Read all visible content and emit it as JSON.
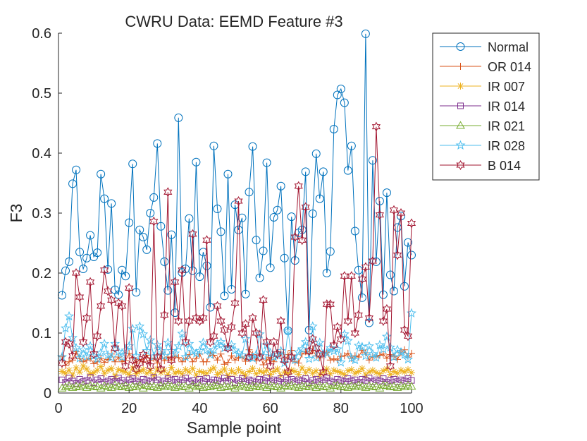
{
  "chart_data": {
    "type": "line",
    "title": "CWRU Data: EEMD Feature #3",
    "xlabel": "Sample point",
    "ylabel": "F3",
    "xlim": [
      0,
      100
    ],
    "ylim": [
      0,
      0.6
    ],
    "xticks": [
      0,
      20,
      40,
      60,
      80,
      100
    ],
    "xtick_labels": [
      "0",
      "20",
      "40",
      "60",
      "80",
      "100"
    ],
    "yticks": [
      0,
      0.1,
      0.2,
      0.3,
      0.4,
      0.5,
      0.6
    ],
    "ytick_labels": [
      "0",
      "0.1",
      "0.2",
      "0.3",
      "0.4",
      "0.5",
      "0.6"
    ],
    "grid": false,
    "legend_position": "top-right outside",
    "x": [
      1,
      2,
      3,
      4,
      5,
      6,
      7,
      8,
      9,
      10,
      11,
      12,
      13,
      14,
      15,
      16,
      17,
      18,
      19,
      20,
      21,
      22,
      23,
      24,
      25,
      26,
      27,
      28,
      29,
      30,
      31,
      32,
      33,
      34,
      35,
      36,
      37,
      38,
      39,
      40,
      41,
      42,
      43,
      44,
      45,
      46,
      47,
      48,
      49,
      50,
      51,
      52,
      53,
      54,
      55,
      56,
      57,
      58,
      59,
      60,
      61,
      62,
      63,
      64,
      65,
      66,
      67,
      68,
      69,
      70,
      71,
      72,
      73,
      74,
      75,
      76,
      77,
      78,
      79,
      80,
      81,
      82,
      83,
      84,
      85,
      86,
      87,
      88,
      89,
      90,
      91,
      92,
      93,
      94,
      95,
      96,
      97,
      98,
      99,
      100
    ],
    "series": [
      {
        "name": "Normal",
        "color": "#0072BD",
        "marker": "circle",
        "values": [
          0.163,
          0.204,
          0.219,
          0.349,
          0.372,
          0.235,
          0.207,
          0.225,
          0.263,
          0.227,
          0.234,
          0.365,
          0.324,
          0.206,
          0.316,
          0.172,
          0.164,
          0.205,
          0.195,
          0.284,
          0.382,
          0.168,
          0.272,
          0.26,
          0.239,
          0.3,
          0.326,
          0.416,
          0.278,
          0.219,
          0.171,
          0.264,
          0.134,
          0.459,
          0.201,
          0.207,
          0.291,
          0.204,
          0.385,
          0.194,
          0.235,
          0.212,
          0.143,
          0.412,
          0.307,
          0.269,
          0.162,
          0.365,
          0.173,
          0.314,
          0.272,
          0.292,
          0.165,
          0.335,
          0.411,
          0.255,
          0.192,
          0.237,
          0.384,
          0.209,
          0.293,
          0.305,
          0.345,
          0.225,
          0.104,
          0.294,
          0.221,
          0.267,
          0.272,
          0.369,
          0.105,
          0.299,
          0.399,
          0.324,
          0.369,
          0.2,
          0.236,
          0.44,
          0.497,
          0.507,
          0.484,
          0.371,
          0.412,
          0.27,
          0.205,
          0.159,
          0.599,
          0.117,
          0.388,
          0.219,
          0.32,
          0.164,
          0.334,
          0.197,
          0.17,
          0.276,
          0.295,
          0.178,
          0.251,
          0.23
        ]
      },
      {
        "name": "OR 014",
        "color": "#D95319",
        "marker": "plus",
        "values": [
          0.061,
          0.046,
          0.052,
          0.055,
          0.069,
          0.057,
          0.052,
          0.055,
          0.058,
          0.049,
          0.052,
          0.058,
          0.051,
          0.056,
          0.065,
          0.052,
          0.06,
          0.052,
          0.054,
          0.066,
          0.059,
          0.05,
          0.056,
          0.052,
          0.063,
          0.054,
          0.058,
          0.05,
          0.065,
          0.054,
          0.06,
          0.055,
          0.062,
          0.059,
          0.052,
          0.057,
          0.064,
          0.052,
          0.058,
          0.065,
          0.052,
          0.052,
          0.066,
          0.063,
          0.055,
          0.065,
          0.048,
          0.051,
          0.062,
          0.055,
          0.059,
          0.06,
          0.053,
          0.072,
          0.064,
          0.054,
          0.066,
          0.047,
          0.055,
          0.059,
          0.052,
          0.062,
          0.067,
          0.052,
          0.064,
          0.071,
          0.052,
          0.05,
          0.065,
          0.069,
          0.065,
          0.071,
          0.062,
          0.059,
          0.066,
          0.068,
          0.055,
          0.057,
          0.055,
          0.061,
          0.062,
          0.066,
          0.058,
          0.062,
          0.06,
          0.071,
          0.067,
          0.055,
          0.061,
          0.06,
          0.063,
          0.065,
          0.058,
          0.064,
          0.061,
          0.056,
          0.067,
          0.072,
          0.06,
          0.066
        ]
      },
      {
        "name": "IR 007",
        "color": "#EDB120",
        "marker": "asterisk",
        "values": [
          0.036,
          0.033,
          0.038,
          0.03,
          0.042,
          0.035,
          0.045,
          0.04,
          0.032,
          0.034,
          0.038,
          0.044,
          0.033,
          0.038,
          0.041,
          0.028,
          0.039,
          0.037,
          0.035,
          0.031,
          0.042,
          0.032,
          0.036,
          0.039,
          0.033,
          0.037,
          0.029,
          0.04,
          0.034,
          0.038,
          0.031,
          0.043,
          0.033,
          0.036,
          0.032,
          0.039,
          0.035,
          0.041,
          0.03,
          0.036,
          0.034,
          0.033,
          0.038,
          0.042,
          0.031,
          0.035,
          0.04,
          0.029,
          0.037,
          0.033,
          0.039,
          0.034,
          0.03,
          0.036,
          0.041,
          0.032,
          0.037,
          0.034,
          0.038,
          0.031,
          0.036,
          0.04,
          0.029,
          0.035,
          0.033,
          0.038,
          0.036,
          0.031,
          0.042,
          0.034,
          0.039,
          0.033,
          0.037,
          0.03,
          0.035,
          0.04,
          0.032,
          0.038,
          0.036,
          0.034,
          0.031,
          0.037,
          0.039,
          0.033,
          0.036,
          0.041,
          0.03,
          0.035,
          0.038,
          0.034,
          0.032,
          0.037,
          0.04,
          0.031,
          0.036,
          0.033,
          0.038,
          0.035,
          0.039,
          0.034
        ]
      },
      {
        "name": "IR 014",
        "color": "#7E2F8E",
        "marker": "square",
        "values": [
          0.022,
          0.018,
          0.025,
          0.02,
          0.016,
          0.023,
          0.019,
          0.021,
          0.026,
          0.017,
          0.022,
          0.024,
          0.018,
          0.02,
          0.023,
          0.019,
          0.025,
          0.021,
          0.017,
          0.022,
          0.024,
          0.02,
          0.018,
          0.023,
          0.021,
          0.019,
          0.026,
          0.022,
          0.017,
          0.02,
          0.024,
          0.021,
          0.023,
          0.018,
          0.022,
          0.025,
          0.019,
          0.021,
          0.017,
          0.023,
          0.02,
          0.024,
          0.018,
          0.022,
          0.021,
          0.019,
          0.025,
          0.02,
          0.023,
          0.017,
          0.021,
          0.024,
          0.019,
          0.022,
          0.02,
          0.018,
          0.023,
          0.021,
          0.025,
          0.019,
          0.022,
          0.02,
          0.024,
          0.018,
          0.021,
          0.023,
          0.019,
          0.022,
          0.02,
          0.024,
          0.017,
          0.021,
          0.023,
          0.019,
          0.022,
          0.025,
          0.02,
          0.018,
          0.023,
          0.021,
          0.019,
          0.024,
          0.02,
          0.022,
          0.018,
          0.023,
          0.021,
          0.025,
          0.019,
          0.022,
          0.02,
          0.024,
          0.018,
          0.021,
          0.023,
          0.019,
          0.022,
          0.02,
          0.024,
          0.021
        ]
      },
      {
        "name": "IR 021",
        "color": "#77AC30",
        "marker": "triangle",
        "values": [
          0.008,
          0.01,
          0.012,
          0.009,
          0.011,
          0.01,
          0.013,
          0.009,
          0.012,
          0.01,
          0.011,
          0.008,
          0.012,
          0.01,
          0.009,
          0.013,
          0.011,
          0.01,
          0.012,
          0.009,
          0.011,
          0.01,
          0.013,
          0.008,
          0.012,
          0.01,
          0.011,
          0.009,
          0.012,
          0.01,
          0.013,
          0.011,
          0.009,
          0.012,
          0.01,
          0.011,
          0.008,
          0.013,
          0.01,
          0.012,
          0.009,
          0.011,
          0.01,
          0.012,
          0.013,
          0.009,
          0.011,
          0.01,
          0.012,
          0.008,
          0.011,
          0.013,
          0.01,
          0.009,
          0.012,
          0.011,
          0.01,
          0.013,
          0.009,
          0.012,
          0.011,
          0.01,
          0.008,
          0.012,
          0.011,
          0.013,
          0.01,
          0.009,
          0.012,
          0.011,
          0.01,
          0.013,
          0.009,
          0.012,
          0.01,
          0.011,
          0.008,
          0.012,
          0.013,
          0.01,
          0.011,
          0.009,
          0.012,
          0.01,
          0.013,
          0.011,
          0.009,
          0.012,
          0.01,
          0.011,
          0.008,
          0.013,
          0.012,
          0.01,
          0.011,
          0.009,
          0.012,
          0.01,
          0.013,
          0.011
        ]
      },
      {
        "name": "IR 028",
        "color": "#4DBEEE",
        "marker": "pentagram",
        "values": [
          0.06,
          0.108,
          0.128,
          0.092,
          0.075,
          0.058,
          0.072,
          0.061,
          0.078,
          0.062,
          0.057,
          0.067,
          0.082,
          0.063,
          0.059,
          0.082,
          0.069,
          0.06,
          0.071,
          0.078,
          0.107,
          0.062,
          0.111,
          0.098,
          0.07,
          0.088,
          0.061,
          0.08,
          0.07,
          0.062,
          0.084,
          0.07,
          0.066,
          0.078,
          0.099,
          0.06,
          0.082,
          0.069,
          0.066,
          0.07,
          0.084,
          0.072,
          0.064,
          0.072,
          0.081,
          0.085,
          0.075,
          0.076,
          0.08,
          0.071,
          0.066,
          0.063,
          0.09,
          0.06,
          0.058,
          0.064,
          0.098,
          0.062,
          0.08,
          0.067,
          0.06,
          0.063,
          0.07,
          0.05,
          0.104,
          0.061,
          0.055,
          0.068,
          0.073,
          0.085,
          0.057,
          0.111,
          0.059,
          0.084,
          0.065,
          0.067,
          0.075,
          0.07,
          0.073,
          0.051,
          0.098,
          0.087,
          0.058,
          0.055,
          0.079,
          0.077,
          0.062,
          0.078,
          0.065,
          0.059,
          0.08,
          0.073,
          0.094,
          0.076,
          0.06,
          0.072,
          0.068,
          0.064,
          0.056,
          0.133
        ]
      },
      {
        "name": "B 014",
        "color": "#A2142F",
        "marker": "hexagram",
        "values": [
          0.05,
          0.085,
          0.082,
          0.062,
          0.2,
          0.16,
          0.085,
          0.125,
          0.185,
          0.065,
          0.095,
          0.145,
          0.205,
          0.17,
          0.155,
          0.075,
          0.15,
          0.145,
          0.045,
          0.175,
          0.055,
          0.04,
          0.05,
          0.064,
          0.055,
          0.045,
          0.286,
          0.06,
          0.04,
          0.13,
          0.335,
          0.055,
          0.185,
          0.12,
          0.205,
          0.085,
          0.12,
          0.265,
          0.125,
          0.12,
          0.125,
          0.255,
          0.085,
          0.095,
          0.145,
          0.12,
          0.105,
          0.075,
          0.11,
          0.15,
          0.32,
          0.1,
          0.115,
          0.06,
          0.125,
          0.1,
          0.06,
          0.155,
          0.085,
          0.045,
          0.085,
          0.065,
          0.12,
          0.055,
          0.035,
          0.06,
          0.26,
          0.345,
          0.255,
          0.31,
          0.07,
          0.09,
          0.075,
          0.065,
          0.035,
          0.148,
          0.148,
          0.08,
          0.11,
          0.09,
          0.195,
          0.12,
          0.195,
          0.1,
          0.13,
          0.19,
          0.21,
          0.125,
          0.22,
          0.444,
          0.297,
          0.12,
          0.14,
          0.045,
          0.305,
          0.23,
          0.3,
          0.105,
          0.095,
          0.283
        ]
      }
    ]
  }
}
